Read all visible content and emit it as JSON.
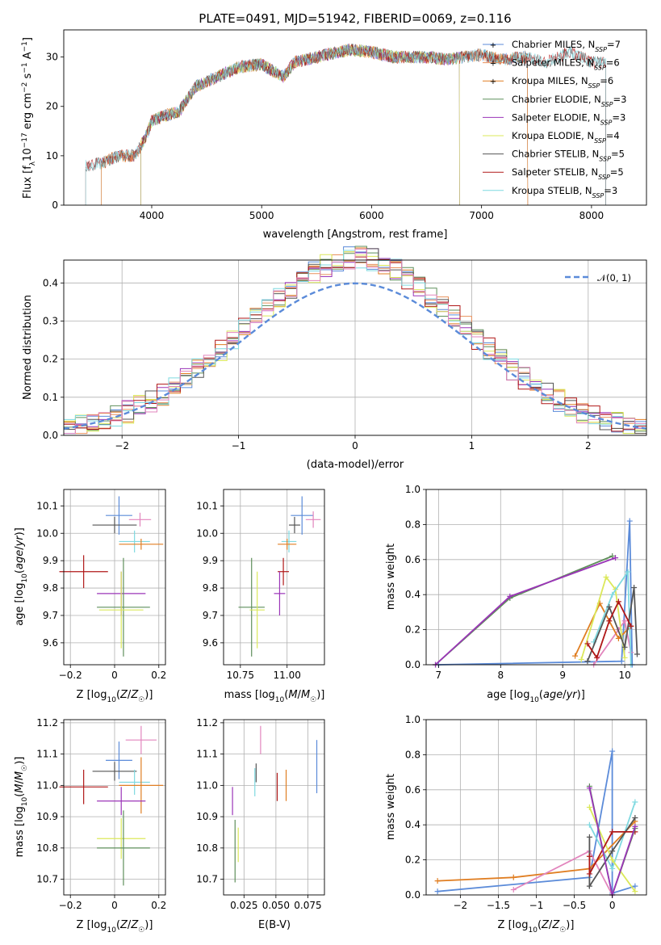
{
  "figure": {
    "title": "PLATE=0491, MJD=51942, FIBERID=0069, z=0.116"
  },
  "colors": {
    "Chabrier MILES": "#5b8bd9",
    "Salpeter MILES": "#e8905c",
    "Kroupa MILES": "#e07e22",
    "Chabrier ELODIE": "#5f8f5b",
    "Salpeter ELODIE": "#9b35b8",
    "Kroupa ELODIE": "#dbe85a",
    "Chabrier STELIB": "#555555",
    "Salpeter STELIB": "#b01818",
    "Kroupa STELIB": "#7fd9e0",
    "Kroupa ELODIE mass": "#e285bd",
    "gaussian": "#5b8bd9"
  },
  "chart_data": [
    {
      "id": "spectrum",
      "type": "line",
      "xlabel": "wavelength [Angstrom, rest frame]",
      "ylabel": "Flux [f_λ10^-17 erg cm^-2 s^-1 A^-1]",
      "xlim": [
        3200,
        8500
      ],
      "ylim": [
        0,
        35.5
      ],
      "xticks": [
        4000,
        5000,
        6000,
        7000,
        8000
      ],
      "yticks": [
        0,
        10,
        20,
        30
      ],
      "grid": false,
      "legend": {
        "placement": "top-right",
        "entries": [
          "Chabrier MILES, N_SSP=7",
          "Salpeter MILES, N_SSP=6",
          "Kroupa MILES, N_SSP=6",
          "Chabrier ELODIE, N_SSP=3",
          "Salpeter ELODIE, N_SSP=3",
          "Kroupa ELODIE, N_SSP=4",
          "Chabrier STELIB, N_SSP=5",
          "Salpeter STELIB, N_SSP=5",
          "Kroupa STELIB, N_SSP=3"
        ]
      },
      "continuum": [
        [
          3400,
          8
        ],
        [
          3550,
          8.5
        ],
        [
          3700,
          10
        ],
        [
          3850,
          10
        ],
        [
          3950,
          14
        ],
        [
          4000,
          17
        ],
        [
          4100,
          18
        ],
        [
          4250,
          19
        ],
        [
          4400,
          24
        ],
        [
          4600,
          26
        ],
        [
          4800,
          28
        ],
        [
          5000,
          28.5
        ],
        [
          5200,
          26
        ],
        [
          5300,
          29
        ],
        [
          5500,
          30
        ],
        [
          5700,
          31
        ],
        [
          5800,
          31.5
        ],
        [
          6000,
          31
        ],
        [
          6200,
          30
        ],
        [
          6500,
          30
        ],
        [
          6700,
          29.5
        ],
        [
          7000,
          30.5
        ],
        [
          7200,
          29.5
        ],
        [
          7400,
          30
        ],
        [
          7600,
          29
        ],
        [
          7800,
          31
        ],
        [
          8000,
          29
        ]
      ],
      "range_starts": {
        "miles": 3540,
        "elodie": 3900,
        "stelib": 3400
      },
      "range_ends": {
        "miles": 7420,
        "elodie": 6800,
        "stelib": 8130
      }
    },
    {
      "id": "residual_histogram",
      "type": "histogram",
      "xlabel": "(data-model)/error",
      "ylabel": "Normed distribution",
      "xlim": [
        -2.5,
        2.5
      ],
      "ylim": [
        0,
        0.46
      ],
      "xticks": [
        -2,
        -1,
        0,
        1,
        2
      ],
      "yticks": [
        0.0,
        0.1,
        0.2,
        0.3,
        0.4
      ],
      "grid": true,
      "bins": 50,
      "legend": {
        "placement": "top-right",
        "entries": [
          "𝒩(0, 1)"
        ]
      },
      "reference_curve": "standard normal pdf"
    },
    {
      "id": "age_vs_Z",
      "type": "errorbar",
      "xlabel": "Z [log10(Z/Z☉)]",
      "ylabel": "age  [log10(age/yr)]",
      "xlim": [
        -0.23,
        0.23
      ],
      "ylim": [
        9.52,
        10.16
      ],
      "xticks": [
        -0.2,
        0.0,
        0.2
      ],
      "yticks": [
        9.6,
        9.7,
        9.8,
        9.9,
        10.0,
        10.1
      ],
      "grid": true,
      "points": [
        {
          "series": "Chabrier MILES",
          "x": 0.02,
          "xerr": 0.06,
          "y": 10.065,
          "yerr": 0.07
        },
        {
          "series": "Kroupa ELODIE mass",
          "x": 0.115,
          "xerr": 0.05,
          "y": 10.05,
          "yerr": 0.025
        },
        {
          "series": "Chabrier STELIB",
          "x": 0.0,
          "xerr": 0.1,
          "y": 10.03,
          "yerr": 0.03
        },
        {
          "series": "Kroupa STELIB",
          "x": 0.09,
          "xerr": 0.07,
          "y": 9.97,
          "yerr": 0.04
        },
        {
          "series": "Kroupa MILES",
          "x": 0.12,
          "xerr": 0.1,
          "y": 9.96,
          "yerr": 0.02
        },
        {
          "series": "Salpeter STELIB",
          "x": -0.14,
          "xerr": 0.11,
          "y": 9.86,
          "yerr": 0.06
        },
        {
          "series": "Salpeter ELODIE",
          "x": 0.03,
          "xerr": 0.11,
          "y": 9.78,
          "yerr": 0.08
        },
        {
          "series": "Chabrier ELODIE",
          "x": 0.04,
          "xerr": 0.12,
          "y": 9.73,
          "yerr": 0.18
        },
        {
          "series": "Kroupa ELODIE",
          "x": 0.03,
          "xerr": 0.1,
          "y": 9.72,
          "yerr": 0.14
        }
      ]
    },
    {
      "id": "age_vs_mass",
      "type": "errorbar",
      "xlabel": "mass [log10(M/M☉)]",
      "ylabel": "",
      "xlim": [
        10.66,
        11.2
      ],
      "ylim": [
        9.52,
        10.16
      ],
      "xticks": [
        10.75,
        11.0
      ],
      "xticklabels": [
        "10.75",
        "11.00"
      ],
      "yticks": [
        9.6,
        9.7,
        9.8,
        9.9,
        10.0,
        10.1
      ],
      "grid": true,
      "points": [
        {
          "series": "Chabrier MILES",
          "x": 11.08,
          "xerr": 0.06,
          "y": 10.065,
          "yerr": 0.07
        },
        {
          "series": "Kroupa ELODIE mass",
          "x": 11.14,
          "xerr": 0.04,
          "y": 10.05,
          "yerr": 0.03
        },
        {
          "series": "Chabrier STELIB",
          "x": 11.04,
          "xerr": 0.03,
          "y": 10.03,
          "yerr": 0.03
        },
        {
          "series": "Kroupa STELIB",
          "x": 11.01,
          "xerr": 0.04,
          "y": 9.97,
          "yerr": 0.04
        },
        {
          "series": "Kroupa MILES",
          "x": 11.0,
          "xerr": 0.05,
          "y": 9.96,
          "yerr": 0.02
        },
        {
          "series": "Salpeter STELIB",
          "x": 10.98,
          "xerr": 0.03,
          "y": 9.86,
          "yerr": 0.05
        },
        {
          "series": "Salpeter ELODIE",
          "x": 10.96,
          "xerr": 0.03,
          "y": 9.78,
          "yerr": 0.08
        },
        {
          "series": "Chabrier ELODIE",
          "x": 10.81,
          "xerr": 0.07,
          "y": 9.73,
          "yerr": 0.18
        },
        {
          "series": "Kroupa ELODIE",
          "x": 10.84,
          "xerr": 0.04,
          "y": 9.72,
          "yerr": 0.14
        }
      ]
    },
    {
      "id": "mass_weight_vs_age",
      "type": "line",
      "xlabel": "age  [log10(age/yr)]",
      "ylabel": "mass weight",
      "xlim": [
        6.8,
        10.35
      ],
      "ylim": [
        0,
        1.0
      ],
      "xticks": [
        7,
        8,
        9,
        10
      ],
      "yticks": [
        0.0,
        0.2,
        0.4,
        0.6,
        0.8,
        1.0
      ],
      "grid": true,
      "series": [
        {
          "name": "Chabrier MILES",
          "points": [
            [
              7.0,
              0.0
            ],
            [
              9.95,
              0.02
            ],
            [
              10.08,
              0.82
            ],
            [
              10.12,
              0.0
            ]
          ]
        },
        {
          "name": "Kroupa ELODIE mass",
          "points": [
            [
              9.5,
              0.0
            ],
            [
              9.9,
              0.2
            ],
            [
              10.0,
              0.25
            ],
            [
              10.1,
              0.07
            ]
          ]
        },
        {
          "name": "Kroupa MILES",
          "points": [
            [
              9.2,
              0.05
            ],
            [
              9.6,
              0.35
            ],
            [
              9.9,
              0.15
            ],
            [
              10.1,
              0.22
            ]
          ]
        },
        {
          "name": "Kroupa ELODIE",
          "points": [
            [
              9.3,
              0.03
            ],
            [
              9.7,
              0.5
            ],
            [
              9.85,
              0.43
            ],
            [
              10.0,
              0.04
            ]
          ]
        },
        {
          "name": "Kroupa STELIB",
          "points": [
            [
              9.5,
              0.13
            ],
            [
              9.8,
              0.4
            ],
            [
              10.05,
              0.53
            ],
            [
              10.1,
              0.0
            ]
          ]
        },
        {
          "name": "Chabrier STELIB",
          "points": [
            [
              9.4,
              0.02
            ],
            [
              9.75,
              0.33
            ],
            [
              10.0,
              0.1
            ],
            [
              10.15,
              0.44
            ],
            [
              10.2,
              0.06
            ]
          ]
        },
        {
          "name": "Salpeter STELIB",
          "points": [
            [
              9.4,
              0.12
            ],
            [
              9.55,
              0.04
            ],
            [
              9.75,
              0.25
            ],
            [
              9.9,
              0.36
            ],
            [
              10.1,
              0.22
            ]
          ]
        },
        {
          "name": "Chabrier ELODIE",
          "points": [
            [
              6.95,
              0.0
            ],
            [
              8.15,
              0.38
            ],
            [
              9.8,
              0.62
            ]
          ]
        },
        {
          "name": "Salpeter ELODIE",
          "points": [
            [
              6.95,
              0.0
            ],
            [
              8.15,
              0.39
            ],
            [
              9.85,
              0.61
            ]
          ]
        }
      ]
    },
    {
      "id": "mass_vs_Z",
      "type": "errorbar",
      "xlabel": "Z [log10(Z/Z☉)]",
      "ylabel": "mass [log10(M/M☉)]",
      "xlim": [
        -0.23,
        0.23
      ],
      "ylim": [
        10.65,
        11.21
      ],
      "xticks": [
        -0.2,
        0.0,
        0.2
      ],
      "yticks": [
        10.7,
        10.8,
        10.9,
        11.0,
        11.1,
        11.2
      ],
      "grid": true,
      "points": [
        {
          "series": "Kroupa ELODIE mass",
          "x": 0.12,
          "xerr": 0.07,
          "y": 11.145,
          "yerr": 0.045
        },
        {
          "series": "Chabrier MILES",
          "x": 0.02,
          "xerr": 0.06,
          "y": 11.08,
          "yerr": 0.06
        },
        {
          "series": "Chabrier STELIB",
          "x": 0.0,
          "xerr": 0.1,
          "y": 11.045,
          "yerr": 0.03
        },
        {
          "series": "Kroupa STELIB",
          "x": 0.09,
          "xerr": 0.07,
          "y": 11.01,
          "yerr": 0.04
        },
        {
          "series": "Kroupa MILES",
          "x": 0.12,
          "xerr": 0.1,
          "y": 11.0,
          "yerr": 0.09
        },
        {
          "series": "Salpeter STELIB",
          "x": -0.14,
          "xerr": 0.11,
          "y": 10.995,
          "yerr": 0.055
        },
        {
          "series": "Salpeter ELODIE",
          "x": 0.03,
          "xerr": 0.11,
          "y": 10.95,
          "yerr": 0.045
        },
        {
          "series": "Kroupa ELODIE",
          "x": 0.03,
          "xerr": 0.11,
          "y": 10.83,
          "yerr": 0.065
        },
        {
          "series": "Chabrier ELODIE",
          "x": 0.04,
          "xerr": 0.12,
          "y": 10.8,
          "yerr": 0.12
        }
      ]
    },
    {
      "id": "mass_vs_EBV",
      "type": "errorbar",
      "xlabel": "E(B-V)",
      "ylabel": "",
      "xlim": [
        0.009,
        0.088
      ],
      "ylim": [
        10.65,
        11.21
      ],
      "xticks": [
        0.025,
        0.05,
        0.075
      ],
      "xticklabels": [
        "0.025",
        "0.050",
        "0.075"
      ],
      "yticks": [
        10.7,
        10.8,
        10.9,
        11.0,
        11.1,
        11.2
      ],
      "grid": true,
      "points": [
        {
          "series": "Kroupa ELODIE mass",
          "x": 0.038,
          "y": 11.145,
          "yerr": 0.045
        },
        {
          "series": "Chabrier MILES",
          "x": 0.082,
          "y": 11.06,
          "yerr": 0.085
        },
        {
          "series": "Kroupa STELIB",
          "x": 0.0335,
          "y": 11.01,
          "yerr": 0.045
        },
        {
          "series": "Chabrier STELIB",
          "x": 0.0345,
          "y": 11.04,
          "yerr": 0.03
        },
        {
          "series": "Kroupa MILES",
          "x": 0.058,
          "y": 11.0,
          "yerr": 0.05
        },
        {
          "series": "Salpeter STELIB",
          "x": 0.051,
          "y": 10.995,
          "yerr": 0.045
        },
        {
          "series": "Salpeter ELODIE",
          "x": 0.016,
          "y": 10.95,
          "yerr": 0.045
        },
        {
          "series": "Kroupa ELODIE",
          "x": 0.0205,
          "y": 10.81,
          "yerr": 0.055
        },
        {
          "series": "Chabrier ELODIE",
          "x": 0.018,
          "y": 10.79,
          "yerr": 0.1
        }
      ]
    },
    {
      "id": "mass_weight_vs_Z",
      "type": "line",
      "xlabel": "Z [log10(Z/Z☉)]",
      "ylabel": "mass weight",
      "xlim": [
        -2.45,
        0.45
      ],
      "ylim": [
        0,
        1.0
      ],
      "xticks": [
        -2.0,
        -1.5,
        -1.0,
        -0.5,
        0.0
      ],
      "yticks": [
        0.0,
        0.2,
        0.4,
        0.6,
        0.8,
        1.0
      ],
      "grid": true,
      "series": [
        {
          "name": "Chabrier MILES",
          "points": [
            [
              -2.3,
              0.02
            ],
            [
              -0.3,
              0.1
            ],
            [
              0.0,
              0.82
            ],
            [
              0.0,
              0.01
            ],
            [
              0.3,
              0.05
            ]
          ]
        },
        {
          "name": "Kroupa MILES",
          "points": [
            [
              -2.3,
              0.08
            ],
            [
              -1.3,
              0.1
            ],
            [
              -0.3,
              0.15
            ],
            [
              0.3,
              0.42
            ]
          ]
        },
        {
          "name": "Kroupa ELODIE mass",
          "points": [
            [
              -1.3,
              0.03
            ],
            [
              -0.3,
              0.25
            ],
            [
              0.0,
              0.0
            ],
            [
              0.3,
              0.38
            ]
          ]
        },
        {
          "name": "Kroupa STELIB",
          "points": [
            [
              -0.3,
              0.4
            ],
            [
              0.0,
              0.15
            ],
            [
              0.3,
              0.53
            ]
          ]
        },
        {
          "name": "Kroupa ELODIE",
          "points": [
            [
              -0.3,
              0.5
            ],
            [
              0.0,
              0.2
            ],
            [
              0.3,
              0.02
            ]
          ]
        },
        {
          "name": "Chabrier STELIB",
          "points": [
            [
              -0.3,
              0.33
            ],
            [
              -0.3,
              0.05
            ],
            [
              0.0,
              0.25
            ],
            [
              0.3,
              0.44
            ]
          ]
        },
        {
          "name": "Salpeter STELIB",
          "points": [
            [
              -0.3,
              0.22
            ],
            [
              -0.3,
              0.12
            ],
            [
              0.0,
              0.36
            ],
            [
              0.3,
              0.36
            ]
          ]
        },
        {
          "name": "Chabrier ELODIE",
          "points": [
            [
              -0.3,
              0.62
            ],
            [
              0.0,
              0.0
            ],
            [
              0.3,
              0.38
            ]
          ]
        },
        {
          "name": "Salpeter ELODIE",
          "points": [
            [
              -0.3,
              0.61
            ],
            [
              0.0,
              0.0
            ],
            [
              0.3,
              0.39
            ]
          ]
        }
      ]
    }
  ]
}
